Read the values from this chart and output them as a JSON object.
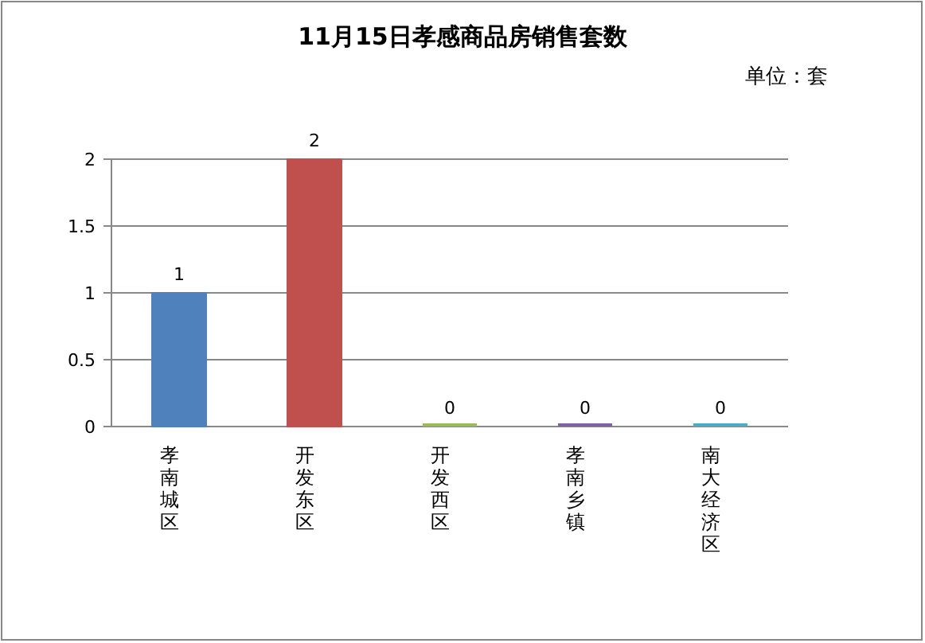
{
  "chart_data": {
    "type": "bar",
    "title": "11月15日孝感商品房销售套数",
    "annotations": [
      "单位：套"
    ],
    "categories": [
      "孝南城区",
      "开发东区",
      "开发西区",
      "孝南乡镇",
      "南大经济区"
    ],
    "values": [
      1,
      2,
      0,
      0,
      0
    ],
    "colors": [
      "#4f81bd",
      "#c0504d",
      "#9bbb59",
      "#8064a2",
      "#4bacc6"
    ],
    "ylim": [
      0,
      2
    ],
    "yticks": [
      0,
      0.5,
      1,
      1.5,
      2
    ],
    "grid": "y",
    "data_labels": true
  }
}
